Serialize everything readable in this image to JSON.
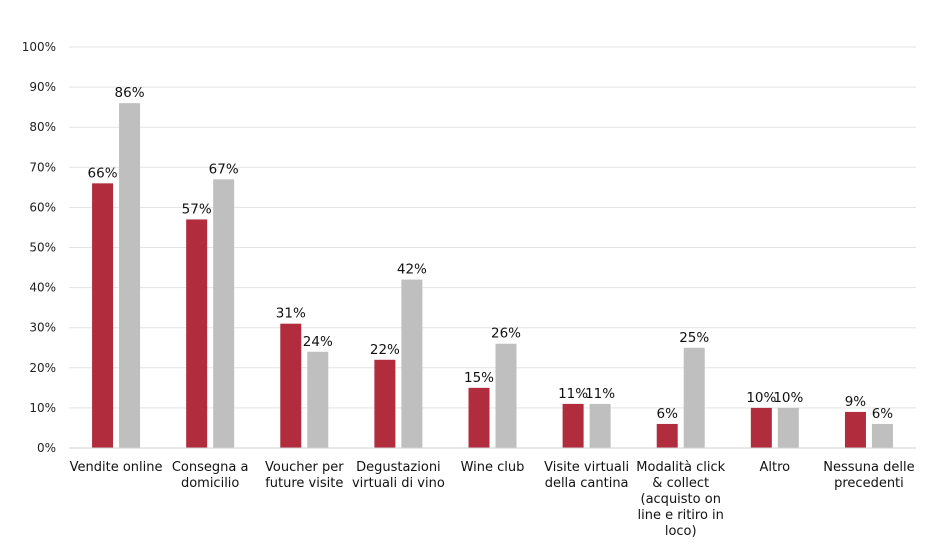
{
  "chart_data": {
    "type": "bar",
    "categories": [
      [
        "Vendite online"
      ],
      [
        "Consegna a",
        "domicilio"
      ],
      [
        "Voucher per",
        "future visite"
      ],
      [
        "Degustazioni",
        "virtuali di vino"
      ],
      [
        "Wine club"
      ],
      [
        "Visite virtuali",
        "della cantina"
      ],
      [
        "Modalità click",
        "& collect",
        "(acquisto on",
        "line e ritiro in",
        "loco)"
      ],
      [
        "Altro"
      ],
      [
        "Nessuna delle",
        "precedenti"
      ]
    ],
    "series": [
      {
        "values": [
          66,
          57,
          31,
          22,
          15,
          11,
          6,
          10,
          9
        ],
        "color": "#B12D3E"
      },
      {
        "values": [
          86,
          67,
          24,
          42,
          26,
          11,
          25,
          10,
          6
        ],
        "color": "#BFBFBF"
      }
    ],
    "value_suffix": "%",
    "ylim": [
      0,
      100
    ],
    "yticks": [
      0,
      10,
      20,
      30,
      40,
      50,
      60,
      70,
      80,
      90,
      100
    ],
    "grid": true,
    "gridColor": "#E3E3E3",
    "legend": "none"
  }
}
